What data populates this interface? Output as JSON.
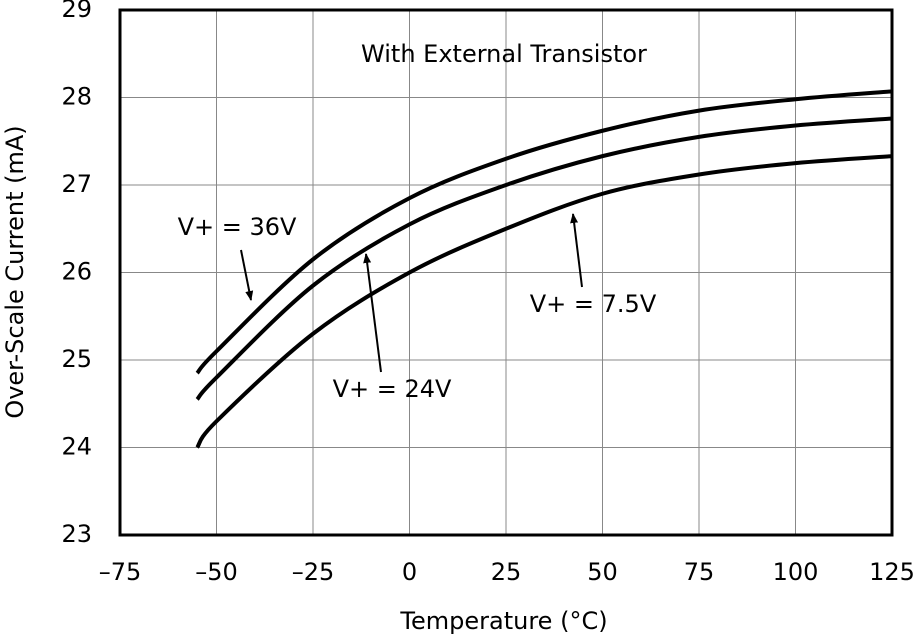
{
  "chart_data": {
    "type": "line",
    "annotations": [
      "With External Transistor",
      "V+ = 36V",
      "V+ = 24V",
      "V+ = 7.5V"
    ],
    "xlabel": "Temperature (°C)",
    "ylabel": "Over-Scale Current (mA)",
    "x": [
      -55,
      -50,
      -25,
      0,
      25,
      50,
      75,
      100,
      125
    ],
    "series": [
      {
        "color": "#000000",
        "values": [
          24.85,
          25.1,
          26.15,
          26.85,
          27.3,
          27.62,
          27.85,
          27.98,
          28.07
        ]
      },
      {
        "color": "#000000",
        "values": [
          24.55,
          24.8,
          25.85,
          26.55,
          27.0,
          27.33,
          27.55,
          27.68,
          27.76
        ]
      },
      {
        "color": "#000000",
        "values": [
          24.0,
          24.3,
          25.3,
          26.0,
          26.5,
          26.9,
          27.12,
          27.25,
          27.33
        ]
      }
    ],
    "xlim": [
      -75,
      125
    ],
    "xticks": [
      {
        "value": -75,
        "label": "–75"
      },
      {
        "value": -50,
        "label": "–50"
      },
      {
        "value": -25,
        "label": "–25"
      },
      0,
      25,
      50,
      75,
      100,
      125
    ],
    "ylim": [
      23,
      29
    ],
    "yticks": [
      23,
      24,
      25,
      26,
      27,
      28,
      29
    ],
    "grid": true
  }
}
